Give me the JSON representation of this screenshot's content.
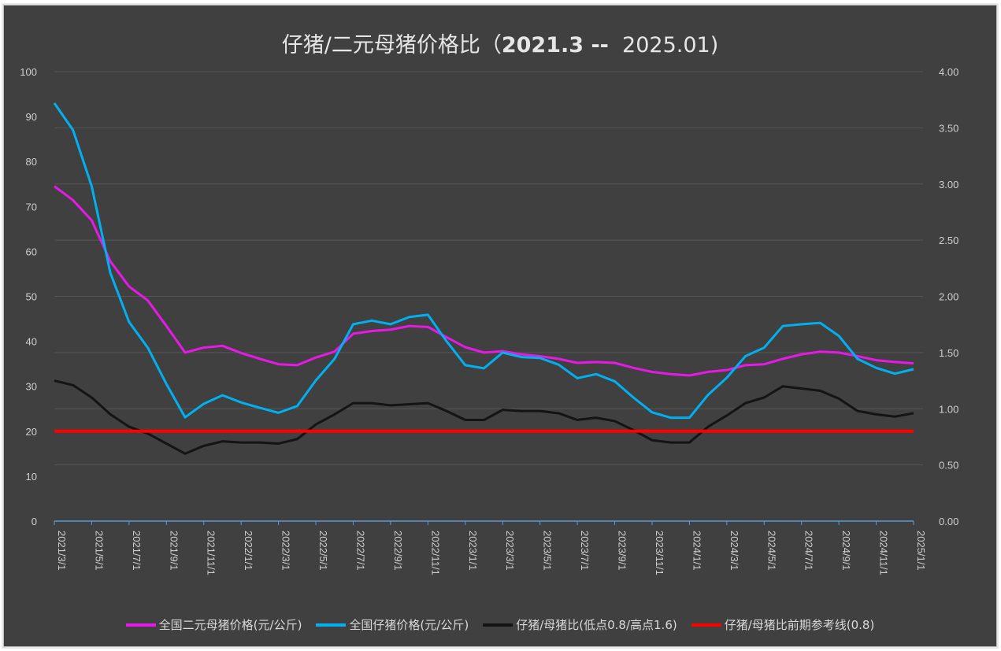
{
  "chart_data": {
    "type": "line",
    "title_cn": "仔猪/二元母猪价格比（",
    "title_range_a": "2021.3 --",
    "title_range_b": "2025.01)",
    "x": [
      "2021/3/1",
      "2021/4/1",
      "2021/5/1",
      "2021/6/1",
      "2021/7/1",
      "2021/8/1",
      "2021/9/1",
      "2021/10/1",
      "2021/11/1",
      "2021/12/1",
      "2022/1/1",
      "2022/2/1",
      "2022/3/1",
      "2022/4/1",
      "2022/5/1",
      "2022/6/1",
      "2022/7/1",
      "2022/8/1",
      "2022/9/1",
      "2022/10/1",
      "2022/11/1",
      "2022/12/1",
      "2023/1/1",
      "2023/2/1",
      "2023/3/1",
      "2023/4/1",
      "2023/5/1",
      "2023/6/1",
      "2023/7/1",
      "2023/8/1",
      "2023/9/1",
      "2023/10/1",
      "2023/11/1",
      "2023/12/1",
      "2024/1/1",
      "2024/2/1",
      "2024/3/1",
      "2024/4/1",
      "2024/5/1",
      "2024/6/1",
      "2024/7/1",
      "2024/8/1",
      "2024/9/1",
      "2024/10/1",
      "2024/11/1",
      "2024/12/1",
      "2025/1/1"
    ],
    "x_tick_labels": [
      "2021/3/1",
      "2021/5/1",
      "2021/7/1",
      "2021/9/1",
      "2021/11/1",
      "2022/1/1",
      "2022/3/1",
      "2022/5/1",
      "2022/7/1",
      "2022/9/1",
      "2022/11/1",
      "2023/1/1",
      "2023/3/1",
      "2023/5/1",
      "2023/7/1",
      "2023/9/1",
      "2023/11/1",
      "2024/1/1",
      "2024/3/1",
      "2024/5/1",
      "2024/7/1",
      "2024/9/1",
      "2024/11/1",
      "2025/1/1"
    ],
    "y_left": {
      "min": 0,
      "max": 100,
      "ticks": [
        "0",
        "10",
        "20",
        "30",
        "40",
        "50",
        "60",
        "70",
        "80",
        "90",
        "100"
      ]
    },
    "y_right": {
      "min": 0,
      "max": 4,
      "ticks": [
        "0.00",
        "0.50",
        "1.00",
        "1.50",
        "2.00",
        "2.50",
        "3.00",
        "3.50",
        "4.00"
      ]
    },
    "grid": true,
    "legend_position": "bottom",
    "series": [
      {
        "name": "全国二元母猪价格(元/公斤)",
        "axis": "left",
        "color": "#e619e6",
        "values": [
          74.5,
          71.4,
          66.9,
          57.8,
          52.2,
          49.1,
          43.4,
          37.5,
          38.6,
          39.0,
          37.4,
          36.1,
          34.9,
          34.7,
          36.4,
          37.7,
          41.7,
          42.3,
          42.6,
          43.4,
          43.2,
          40.9,
          38.7,
          37.5,
          37.8,
          37.1,
          36.7,
          36.1,
          35.2,
          35.4,
          35.2,
          34.1,
          33.2,
          32.7,
          32.4,
          33.2,
          33.6,
          34.7,
          34.9,
          36.1,
          37.1,
          37.7,
          37.5,
          36.7,
          35.8,
          35.4,
          35.1
        ]
      },
      {
        "name": "全国仔猪价格(元/公斤)",
        "axis": "left",
        "color": "#00b0f0",
        "values": [
          93.0,
          87.0,
          74.5,
          55.2,
          44.3,
          38.6,
          30.5,
          23.1,
          26.1,
          28.0,
          26.4,
          25.2,
          24.1,
          25.6,
          31.3,
          36.1,
          43.8,
          44.6,
          43.8,
          45.4,
          45.9,
          40.0,
          34.7,
          34.0,
          37.5,
          36.5,
          36.3,
          34.8,
          31.8,
          32.7,
          31.1,
          27.5,
          24.2,
          23.0,
          23.0,
          28.1,
          31.9,
          36.7,
          38.6,
          43.4,
          43.8,
          44.1,
          41.2,
          36.1,
          34.1,
          32.8,
          33.8
        ]
      },
      {
        "name": "仔猪/母猪比(低点0.8/高点1.6)",
        "axis": "right",
        "color": "#141414",
        "values": [
          1.25,
          1.21,
          1.1,
          0.95,
          0.84,
          0.78,
          0.69,
          0.6,
          0.67,
          0.71,
          0.7,
          0.7,
          0.69,
          0.73,
          0.86,
          0.95,
          1.05,
          1.05,
          1.03,
          1.04,
          1.05,
          0.98,
          0.9,
          0.9,
          0.99,
          0.98,
          0.98,
          0.96,
          0.9,
          0.92,
          0.89,
          0.81,
          0.72,
          0.7,
          0.7,
          0.84,
          0.94,
          1.05,
          1.1,
          1.2,
          1.18,
          1.16,
          1.09,
          0.98,
          0.95,
          0.93,
          0.96
        ]
      },
      {
        "name": "仔猪/母猪比前期参考线(0.8)",
        "axis": "right",
        "color": "#ff0000",
        "constant": 0.8
      }
    ]
  }
}
